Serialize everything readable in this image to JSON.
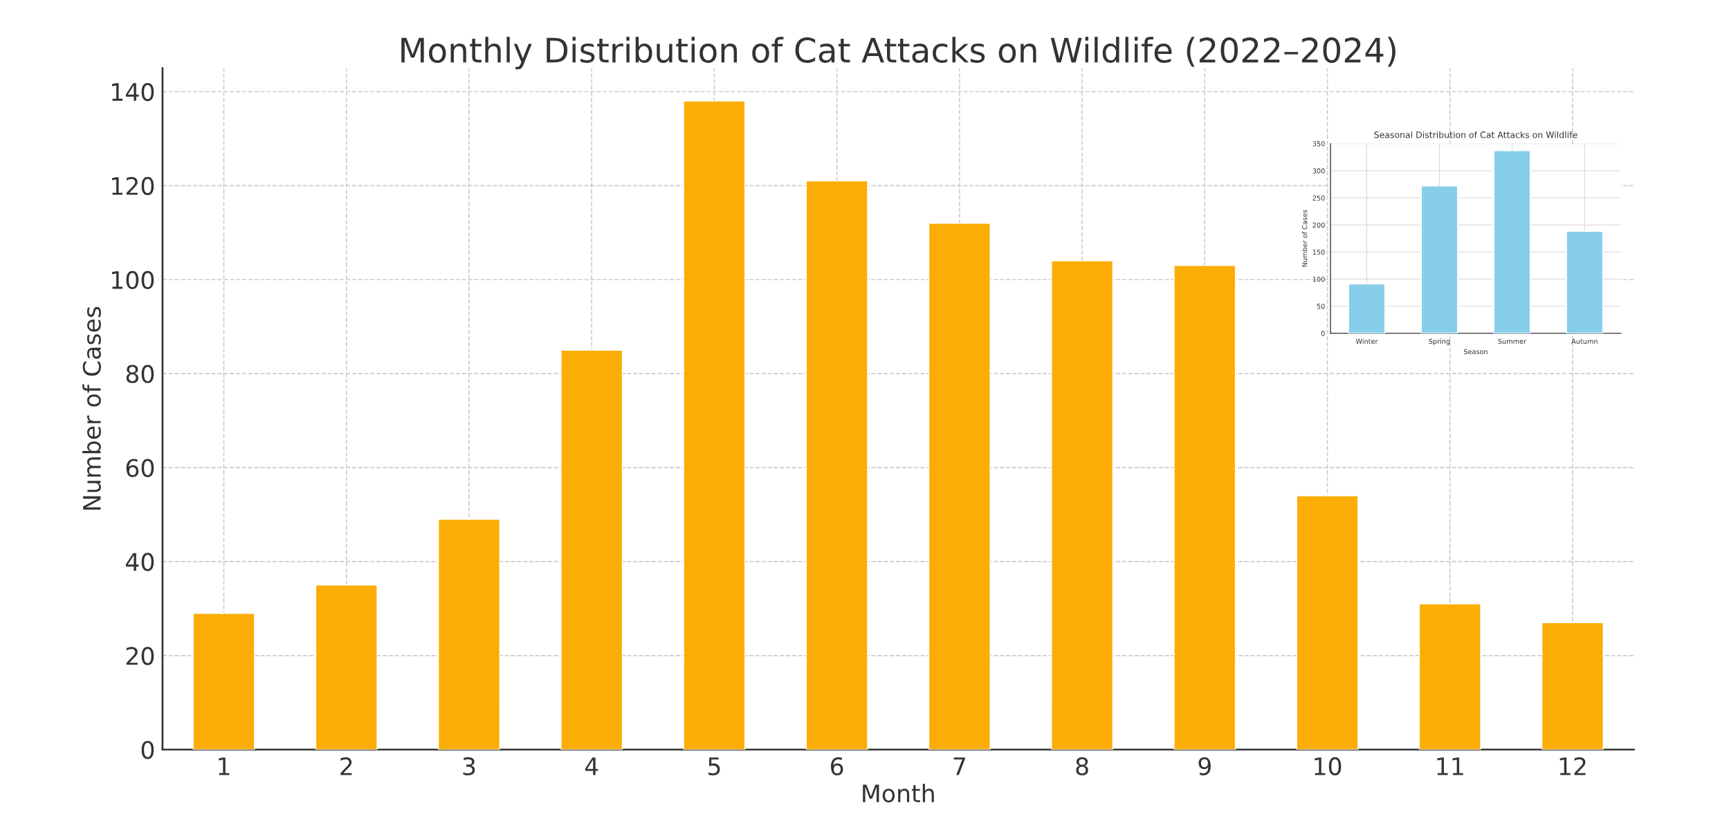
{
  "chart_data": [
    {
      "type": "bar",
      "title": "Monthly Distribution of Cat Attacks on Wildlife (2022–2024)",
      "xlabel": "Month",
      "ylabel": "Number of Cases",
      "categories": [
        "1",
        "2",
        "3",
        "4",
        "5",
        "6",
        "7",
        "8",
        "9",
        "10",
        "11",
        "12"
      ],
      "values": [
        29,
        35,
        49,
        85,
        138,
        121,
        112,
        104,
        103,
        54,
        31,
        27
      ],
      "color": "#fbad05",
      "ylim": [
        0,
        145
      ],
      "yticks": [
        0,
        20,
        40,
        60,
        80,
        100,
        120,
        140
      ],
      "grid": true
    },
    {
      "type": "bar",
      "title": "Seasonal Distribution of Cat Attacks on Wildlife",
      "xlabel": "Season",
      "ylabel": "Number of Cases",
      "categories": [
        "Winter",
        "Spring",
        "Summer",
        "Autumn"
      ],
      "values": [
        91,
        272,
        337,
        188
      ],
      "color": "#87ceeb",
      "ylim": [
        0,
        350
      ],
      "yticks": [
        0,
        50,
        100,
        150,
        200,
        250,
        300,
        350
      ],
      "grid": true
    }
  ]
}
